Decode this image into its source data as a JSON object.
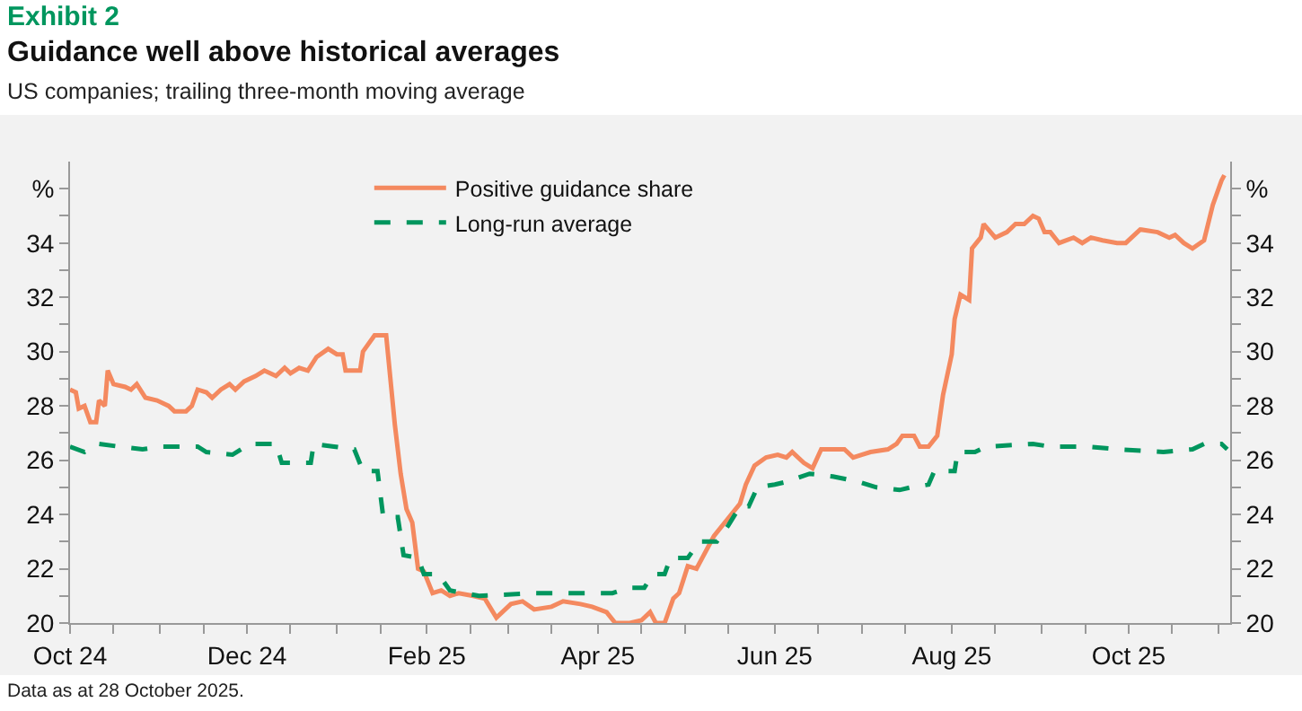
{
  "chart_data": {
    "type": "line",
    "title": "Guidance well above historical averages",
    "subtitle": "US companies; trailing three-month moving average",
    "annotations": [
      "Exhibit 2",
      "Data as at 28 October 2025."
    ],
    "legend": "top",
    "marker": "none",
    "xlim": [
      "2024-10-01",
      "2025-11-05"
    ],
    "xticks": [
      {
        "value": "2024-10-01",
        "label": "Oct 24"
      },
      {
        "value": "2024-10-16",
        "label": null
      },
      {
        "value": "2024-11-01",
        "label": null
      },
      {
        "value": "2024-11-16",
        "label": null
      },
      {
        "value": "2024-12-01",
        "label": "Dec 24"
      },
      {
        "value": "2024-12-16",
        "label": null
      },
      {
        "value": "2025-01-01",
        "label": null
      },
      {
        "value": "2025-01-16",
        "label": null
      },
      {
        "value": "2025-02-01",
        "label": "Feb 25"
      },
      {
        "value": "2025-02-16",
        "label": null
      },
      {
        "value": "2025-03-01",
        "label": null
      },
      {
        "value": "2025-03-16",
        "label": null
      },
      {
        "value": "2025-04-01",
        "label": "Apr 25"
      },
      {
        "value": "2025-04-16",
        "label": null
      },
      {
        "value": "2025-05-01",
        "label": null
      },
      {
        "value": "2025-05-16",
        "label": null
      },
      {
        "value": "2025-06-01",
        "label": "Jun 25"
      },
      {
        "value": "2025-06-16",
        "label": null
      },
      {
        "value": "2025-07-01",
        "label": null
      },
      {
        "value": "2025-07-16",
        "label": null
      },
      {
        "value": "2025-08-01",
        "label": "Aug 25"
      },
      {
        "value": "2025-08-16",
        "label": null
      },
      {
        "value": "2025-09-01",
        "label": null
      },
      {
        "value": "2025-09-16",
        "label": null
      },
      {
        "value": "2025-10-01",
        "label": "Oct 25"
      },
      {
        "value": "2025-10-16",
        "label": null
      },
      {
        "value": "2025-11-01",
        "label": null
      }
    ],
    "ylim": [
      20,
      37
    ],
    "yticks": [
      20,
      {
        "value": 21,
        "label": null
      },
      22,
      {
        "value": 23,
        "label": null
      },
      24,
      {
        "value": 25,
        "label": null
      },
      26,
      {
        "value": 27,
        "label": null
      },
      28,
      {
        "value": 29,
        "label": null
      },
      30,
      {
        "value": 31,
        "label": null
      },
      32,
      {
        "value": 33,
        "label": null
      },
      34,
      {
        "value": 35,
        "label": null
      },
      {
        "value": 36,
        "label": "%"
      }
    ],
    "y2lim": [
      20,
      37
    ],
    "y2ticks": [
      20,
      {
        "value": 21,
        "label": null
      },
      22,
      {
        "value": 23,
        "label": null
      },
      24,
      {
        "value": 25,
        "label": null
      },
      26,
      {
        "value": 27,
        "label": null
      },
      28,
      {
        "value": 29,
        "label": null
      },
      30,
      {
        "value": 31,
        "label": null
      },
      32,
      {
        "value": 33,
        "label": null
      },
      34,
      {
        "value": 35,
        "label": null
      },
      {
        "value": 36,
        "label": "%"
      }
    ],
    "series": [
      {
        "name": "Positive guidance share",
        "color": "#f4895f",
        "line_style": "solid",
        "x": [
          "2024-10-01",
          "2024-10-03",
          "2024-10-04",
          "2024-10-06",
          "2024-10-08",
          "2024-10-10",
          "2024-10-11",
          "2024-10-13",
          "2024-10-14",
          "2024-10-16",
          "2024-10-20",
          "2024-10-22",
          "2024-10-24",
          "2024-10-27",
          "2024-10-31",
          "2024-11-04",
          "2024-11-06",
          "2024-11-10",
          "2024-11-12",
          "2024-11-14",
          "2024-11-17",
          "2024-11-19",
          "2024-11-22",
          "2024-11-25",
          "2024-11-27",
          "2024-11-30",
          "2024-12-04",
          "2024-12-07",
          "2024-12-11",
          "2024-12-14",
          "2024-12-16",
          "2024-12-19",
          "2024-12-22",
          "2024-12-25",
          "2024-12-29",
          "2025-01-01",
          "2025-01-03",
          "2025-01-04",
          "2025-01-09",
          "2025-01-10",
          "2025-01-14",
          "2025-01-18",
          "2025-01-21",
          "2025-01-23",
          "2025-01-25",
          "2025-01-27",
          "2025-01-29",
          "2025-01-31",
          "2025-02-03",
          "2025-02-06",
          "2025-02-09",
          "2025-02-12",
          "2025-02-17",
          "2025-02-21",
          "2025-02-25",
          "2025-03-02",
          "2025-03-06",
          "2025-03-10",
          "2025-03-16",
          "2025-03-20",
          "2025-03-26",
          "2025-03-30",
          "2025-04-04",
          "2025-04-07",
          "2025-04-12",
          "2025-04-16",
          "2025-04-19",
          "2025-04-21",
          "2025-04-24",
          "2025-04-27",
          "2025-04-29",
          "2025-05-02",
          "2025-05-05",
          "2025-05-07",
          "2025-05-11",
          "2025-05-17",
          "2025-05-20",
          "2025-05-22",
          "2025-05-25",
          "2025-05-29",
          "2025-06-02",
          "2025-06-05",
          "2025-06-07",
          "2025-06-11",
          "2025-06-14",
          "2025-06-17",
          "2025-06-21",
          "2025-06-25",
          "2025-06-28",
          "2025-07-04",
          "2025-07-10",
          "2025-07-13",
          "2025-07-15",
          "2025-07-19",
          "2025-07-21",
          "2025-07-24",
          "2025-07-27",
          "2025-07-29",
          "2025-08-01",
          "2025-08-02",
          "2025-08-04",
          "2025-08-07",
          "2025-08-08",
          "2025-08-11",
          "2025-08-12",
          "2025-08-16",
          "2025-08-20",
          "2025-08-23",
          "2025-08-26",
          "2025-08-29",
          "2025-08-31",
          "2025-09-02",
          "2025-09-04",
          "2025-09-07",
          "2025-09-12",
          "2025-09-15",
          "2025-09-18",
          "2025-09-22",
          "2025-09-27",
          "2025-09-30",
          "2025-10-05",
          "2025-10-11",
          "2025-10-15",
          "2025-10-17",
          "2025-10-20",
          "2025-10-23",
          "2025-10-27",
          "2025-10-30",
          "2025-11-02",
          "2025-11-03"
        ],
        "values": [
          28.6,
          28.5,
          27.9,
          28.0,
          27.4,
          27.4,
          28.2,
          28.0,
          29.3,
          28.8,
          28.7,
          28.6,
          28.8,
          28.3,
          28.2,
          28.0,
          27.8,
          27.8,
          28.0,
          28.6,
          28.5,
          28.3,
          28.6,
          28.8,
          28.6,
          28.9,
          29.1,
          29.3,
          29.1,
          29.4,
          29.2,
          29.4,
          29.3,
          29.8,
          30.1,
          29.9,
          29.9,
          29.3,
          29.3,
          30.0,
          30.6,
          30.6,
          27.3,
          25.5,
          24.2,
          23.7,
          22.0,
          21.9,
          21.1,
          21.2,
          21.0,
          21.1,
          21.0,
          20.9,
          20.2,
          20.7,
          20.8,
          20.5,
          20.6,
          20.8,
          20.7,
          20.6,
          20.4,
          20.0,
          20.0,
          20.1,
          20.4,
          20.0,
          20.0,
          20.9,
          21.1,
          22.1,
          22.0,
          22.4,
          23.2,
          24.0,
          24.4,
          25.1,
          25.8,
          26.1,
          26.2,
          26.1,
          26.3,
          25.9,
          25.7,
          26.4,
          26.4,
          26.4,
          26.1,
          26.3,
          26.4,
          26.6,
          26.9,
          26.9,
          26.5,
          26.5,
          26.9,
          28.4,
          29.9,
          31.2,
          32.1,
          31.9,
          33.8,
          34.2,
          34.7,
          34.2,
          34.4,
          34.7,
          34.7,
          35.0,
          34.9,
          34.4,
          34.4,
          34.0,
          34.2,
          34.0,
          34.2,
          34.1,
          34.0,
          34.0,
          34.5,
          34.4,
          34.2,
          34.3,
          34.0,
          33.8,
          34.1,
          35.4,
          36.3,
          36.5
        ]
      },
      {
        "name": "Long-run average",
        "color": "#00965e",
        "line_style": "dashed",
        "x": [
          "2024-10-01",
          "2024-10-06",
          "2024-10-11",
          "2024-10-18",
          "2024-10-26",
          "2024-11-01",
          "2024-11-14",
          "2024-11-17",
          "2024-11-26",
          "2024-12-02",
          "2024-12-11",
          "2024-12-13",
          "2024-12-23",
          "2024-12-24",
          "2024-12-31",
          "2025-01-07",
          "2025-01-10",
          "2025-01-15",
          "2025-01-17",
          "2025-01-22",
          "2025-01-24",
          "2025-01-29",
          "2025-01-31",
          "2025-02-05",
          "2025-02-09",
          "2025-02-19",
          "2025-03-10",
          "2025-03-20",
          "2025-04-06",
          "2025-04-12",
          "2025-04-17",
          "2025-04-20",
          "2025-04-24",
          "2025-04-26",
          "2025-05-02",
          "2025-05-06",
          "2025-05-12",
          "2025-05-16",
          "2025-05-20",
          "2025-05-23",
          "2025-05-26",
          "2025-06-01",
          "2025-06-05",
          "2025-06-13",
          "2025-06-21",
          "2025-06-30",
          "2025-07-06",
          "2025-07-14",
          "2025-07-18",
          "2025-07-24",
          "2025-07-26",
          "2025-08-02",
          "2025-08-03",
          "2025-08-09",
          "2025-08-13",
          "2025-08-29",
          "2025-09-04",
          "2025-09-17",
          "2025-09-27",
          "2025-10-13",
          "2025-10-23",
          "2025-10-27",
          "2025-11-02",
          "2025-11-04"
        ],
        "values": [
          26.5,
          26.3,
          26.6,
          26.5,
          26.4,
          26.5,
          26.5,
          26.3,
          26.2,
          26.6,
          26.6,
          25.9,
          25.9,
          26.6,
          26.5,
          26.4,
          25.6,
          25.6,
          23.9,
          23.9,
          22.5,
          22.4,
          21.8,
          21.8,
          21.2,
          21.0,
          21.1,
          21.1,
          21.1,
          21.3,
          21.3,
          21.8,
          21.8,
          22.4,
          22.4,
          23.0,
          23.0,
          23.6,
          24.3,
          24.3,
          25.0,
          25.1,
          25.2,
          25.5,
          25.4,
          25.2,
          25.0,
          24.9,
          25.0,
          25.1,
          25.6,
          25.6,
          26.3,
          26.3,
          26.5,
          26.6,
          26.5,
          26.5,
          26.4,
          26.3,
          26.4,
          26.6,
          26.6,
          26.4
        ]
      }
    ]
  }
}
